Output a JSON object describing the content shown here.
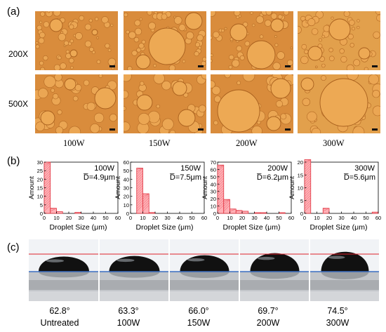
{
  "panel_a": {
    "label": "(a)",
    "row_labels": [
      "200X",
      "500X"
    ],
    "col_labels": [
      "100W",
      "150W",
      "200W",
      "300W"
    ]
  },
  "panel_b": {
    "label": "(b)"
  },
  "panel_c": {
    "label": "(c)",
    "angles": [
      "62.8°",
      "63.3°",
      "66.0°",
      "69.7°",
      "74.5°"
    ],
    "samples": [
      "Untreated",
      "100W",
      "150W",
      "200W",
      "300W"
    ]
  },
  "chart_data": [
    {
      "type": "bar",
      "title": "100W",
      "annotation": "D̅=4.9μm",
      "xlabel": "Droplet Size (μm)",
      "ylabel": "Amount",
      "xlim": [
        0,
        60
      ],
      "ylim": [
        0,
        30
      ],
      "xticks": [
        0,
        10,
        20,
        30,
        40,
        50,
        60
      ],
      "yticks": [
        0,
        5,
        10,
        15,
        20,
        25,
        30
      ],
      "bin_width": 5,
      "bins": [
        {
          "x0": 0,
          "count": 30
        },
        {
          "x0": 5,
          "count": 3
        },
        {
          "x0": 10,
          "count": 1
        },
        {
          "x0": 25,
          "count": 0.6
        }
      ]
    },
    {
      "type": "bar",
      "title": "150W",
      "annotation": "D̅=7.5μm",
      "xlabel": "Droplet Size (μm)",
      "ylabel": "Amount",
      "xlim": [
        0,
        60
      ],
      "ylim": [
        0,
        60
      ],
      "xticks": [
        0,
        10,
        20,
        30,
        40,
        50,
        60
      ],
      "yticks": [
        0,
        10,
        20,
        30,
        40,
        50,
        60
      ],
      "bin_width": 5,
      "bins": [
        {
          "x0": 5,
          "count": 53
        },
        {
          "x0": 10,
          "count": 23
        },
        {
          "x0": 15,
          "count": 1
        }
      ]
    },
    {
      "type": "bar",
      "title": "200W",
      "annotation": "D̅=6.2μm",
      "xlabel": "Droplet Size (μm)",
      "ylabel": "Amount",
      "xlim": [
        0,
        60
      ],
      "ylim": [
        0,
        70
      ],
      "xticks": [
        0,
        10,
        20,
        30,
        40,
        50,
        60
      ],
      "yticks": [
        0,
        10,
        20,
        30,
        40,
        50,
        60,
        70
      ],
      "bin_width": 5,
      "bins": [
        {
          "x0": 0,
          "count": 66
        },
        {
          "x0": 5,
          "count": 19
        },
        {
          "x0": 10,
          "count": 6
        },
        {
          "x0": 15,
          "count": 4
        },
        {
          "x0": 20,
          "count": 3
        },
        {
          "x0": 30,
          "count": 1
        },
        {
          "x0": 35,
          "count": 1
        },
        {
          "x0": 50,
          "count": 1
        }
      ]
    },
    {
      "type": "bar",
      "title": "300W",
      "annotation": "D̅=5.6μm",
      "xlabel": "Droplet Size (μm)",
      "ylabel": "Amount",
      "xlim": [
        0,
        60
      ],
      "ylim": [
        0,
        20
      ],
      "xticks": [
        0,
        10,
        20,
        30,
        40,
        50,
        60
      ],
      "yticks": [
        0,
        5,
        10,
        15,
        20
      ],
      "bin_width": 5,
      "bins": [
        {
          "x0": 0,
          "count": 21
        },
        {
          "x0": 15,
          "count": 2
        },
        {
          "x0": 55,
          "count": 0.5
        }
      ]
    }
  ]
}
